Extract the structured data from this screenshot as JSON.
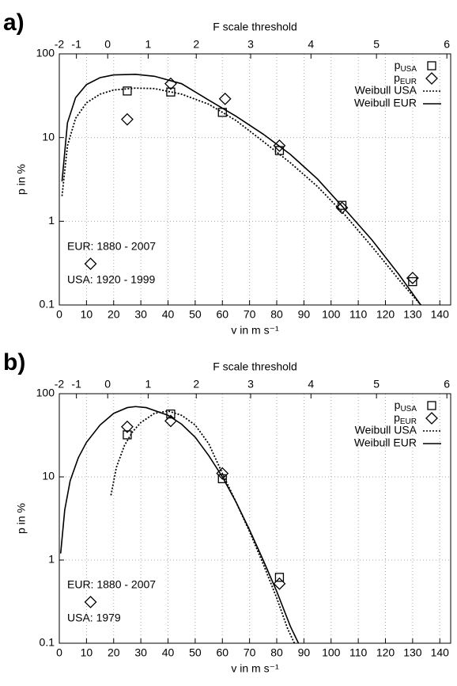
{
  "chart_data": [
    {
      "type": "line",
      "panel_label": "a)",
      "title": "F scale threshold",
      "xlabel": "v in m s⁻¹",
      "ylabel": "p in %",
      "xlim": [
        0,
        144
      ],
      "xticks": [
        0,
        10,
        20,
        30,
        40,
        50,
        60,
        70,
        80,
        90,
        100,
        110,
        120,
        130,
        140
      ],
      "x2ticks": [
        {
          "value": 0,
          "label": "-2"
        },
        {
          "value": 6.3,
          "label": "-1"
        },
        {
          "value": 17.8,
          "label": "0"
        },
        {
          "value": 32.7,
          "label": "1"
        },
        {
          "value": 50.4,
          "label": "2"
        },
        {
          "value": 70.4,
          "label": "3"
        },
        {
          "value": 92.6,
          "label": "4"
        },
        {
          "value": 116.7,
          "label": "5"
        },
        {
          "value": 142.6,
          "label": "6"
        }
      ],
      "ylim": [
        0.1,
        100
      ],
      "yticks": [
        0.1,
        1,
        10,
        100
      ],
      "log_y": true,
      "grid": true,
      "legend": "top-right",
      "annotations": [
        "EUR: 1880 - 2007",
        "USA: 1920 - 1999"
      ],
      "series": [
        {
          "name": "pUSA",
          "marker": "square",
          "color": "#000000",
          "x": [
            25,
            41,
            60,
            81,
            104,
            130
          ],
          "values": [
            36,
            35,
            20,
            7,
            1.55,
            0.19
          ]
        },
        {
          "name": "pEUR",
          "marker": "diamond",
          "color": "#000000",
          "x": [
            25,
            41,
            61,
            81,
            104,
            130
          ],
          "values": [
            16.5,
            44,
            29,
            8,
            1.45,
            0.21
          ]
        },
        {
          "name": "Weibull USA",
          "line": "dotted",
          "color": "#000000",
          "x": [
            1,
            3,
            6,
            10,
            15,
            20,
            28,
            35,
            45,
            55,
            65,
            75,
            85,
            95,
            105,
            115,
            125,
            133
          ],
          "values": [
            2,
            8,
            17,
            26,
            33,
            37,
            39,
            38.5,
            33,
            25,
            16,
            9,
            5,
            2.6,
            1.2,
            0.5,
            0.2,
            0.1
          ]
        },
        {
          "name": "Weibull EUR",
          "line": "solid",
          "color": "#000000",
          "x": [
            1,
            3,
            6,
            10,
            15,
            20,
            28,
            35,
            45,
            55,
            65,
            75,
            85,
            95,
            105,
            115,
            125,
            133
          ],
          "values": [
            3,
            15,
            30,
            43,
            52,
            56,
            57,
            54,
            44,
            28,
            18,
            11,
            6.3,
            3.2,
            1.4,
            0.6,
            0.23,
            0.1
          ]
        }
      ]
    },
    {
      "type": "line",
      "panel_label": "b)",
      "title": "F scale threshold",
      "xlabel": "v in m s⁻¹",
      "ylabel": "p in %",
      "xlim": [
        0,
        144
      ],
      "xticks": [
        0,
        10,
        20,
        30,
        40,
        50,
        60,
        70,
        80,
        90,
        100,
        110,
        120,
        130,
        140
      ],
      "x2ticks": [
        {
          "value": 0,
          "label": "-2"
        },
        {
          "value": 6.3,
          "label": "-1"
        },
        {
          "value": 17.8,
          "label": "0"
        },
        {
          "value": 32.7,
          "label": "1"
        },
        {
          "value": 50.4,
          "label": "2"
        },
        {
          "value": 70.4,
          "label": "3"
        },
        {
          "value": 92.6,
          "label": "4"
        },
        {
          "value": 116.7,
          "label": "5"
        },
        {
          "value": 142.6,
          "label": "6"
        }
      ],
      "ylim": [
        0.1,
        100
      ],
      "yticks": [
        0.1,
        1,
        10,
        100
      ],
      "log_y": true,
      "grid": true,
      "legend": "top-right",
      "annotations": [
        "EUR: 1880 - 2007",
        "USA: 1979"
      ],
      "series": [
        {
          "name": "pUSA",
          "marker": "square",
          "color": "#000000",
          "x": [
            25,
            41,
            60,
            81
          ],
          "values": [
            32,
            57,
            9.5,
            0.62
          ]
        },
        {
          "name": "pEUR",
          "marker": "diamond",
          "color": "#000000",
          "x": [
            25,
            41,
            60,
            81
          ],
          "values": [
            40,
            47,
            11,
            0.52
          ]
        },
        {
          "name": "Weibull USA",
          "line": "dotted",
          "color": "#000000",
          "x": [
            19,
            21,
            24,
            27,
            30,
            35,
            40,
            45,
            50,
            55,
            60,
            65,
            70,
            75,
            80,
            84,
            86.5
          ],
          "values": [
            6,
            13,
            24,
            35,
            45,
            58,
            62,
            55,
            42,
            25,
            11,
            5,
            2.2,
            0.9,
            0.35,
            0.15,
            0.1
          ]
        },
        {
          "name": "Weibull EUR",
          "line": "solid",
          "color": "#000000",
          "x": [
            0.5,
            2,
            4,
            7,
            10,
            15,
            20,
            25,
            28,
            32,
            40,
            45,
            50,
            55,
            60,
            65,
            70,
            75,
            80,
            85,
            88
          ],
          "values": [
            1.2,
            4,
            9,
            17,
            26,
            42,
            58,
            68,
            70,
            68,
            55,
            43,
            30,
            18,
            10,
            5,
            2.3,
            1,
            0.42,
            0.16,
            0.1
          ]
        }
      ]
    }
  ]
}
